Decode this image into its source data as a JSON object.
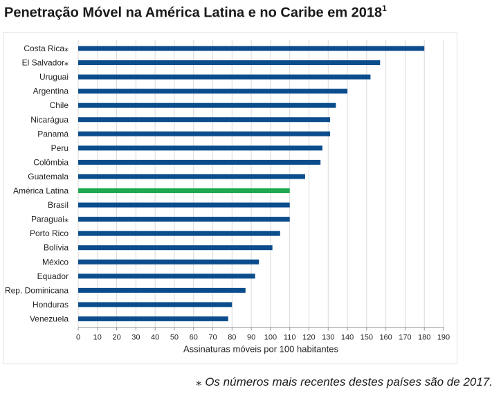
{
  "title": "Penetração Móvel na América Latina e no Caribe em 2018",
  "title_superscript": "1",
  "footnote": "⁎ Os números mais recentes destes países são de 2017.",
  "chart_data": {
    "type": "bar",
    "orientation": "horizontal",
    "xlabel": "Assinaturas móveis por 100 habitantes",
    "ylabel": "",
    "xlim": [
      0,
      190
    ],
    "xticks": [
      0,
      10,
      20,
      30,
      40,
      50,
      60,
      70,
      80,
      90,
      100,
      110,
      120,
      130,
      140,
      150,
      160,
      170,
      180,
      190
    ],
    "grid": "vertical",
    "categories": [
      "Costa Rica⁎",
      "El Salvador⁎",
      "Uruguai",
      "Argentina",
      "Chile",
      "Nicarágua",
      "Panamá",
      "Peru",
      "Colômbia",
      "Guatemala",
      "América Latina",
      "Brasil",
      "Paraguai⁎",
      "Porto Rico",
      "Bolívia",
      "México",
      "Equador",
      "Rep. Dominicana",
      "Honduras",
      "Venezuela"
    ],
    "values": [
      180,
      157,
      152,
      140,
      134,
      131,
      131,
      127,
      126,
      118,
      110,
      110,
      110,
      105,
      101,
      94,
      92,
      87,
      80,
      78
    ],
    "colors": {
      "default": "#0b4d8c",
      "highlight": "#1fa84f",
      "gridline": "#d9d9d9",
      "axis": "#9a9a9a",
      "text": "#222222"
    },
    "highlight_category": "América Latina"
  }
}
